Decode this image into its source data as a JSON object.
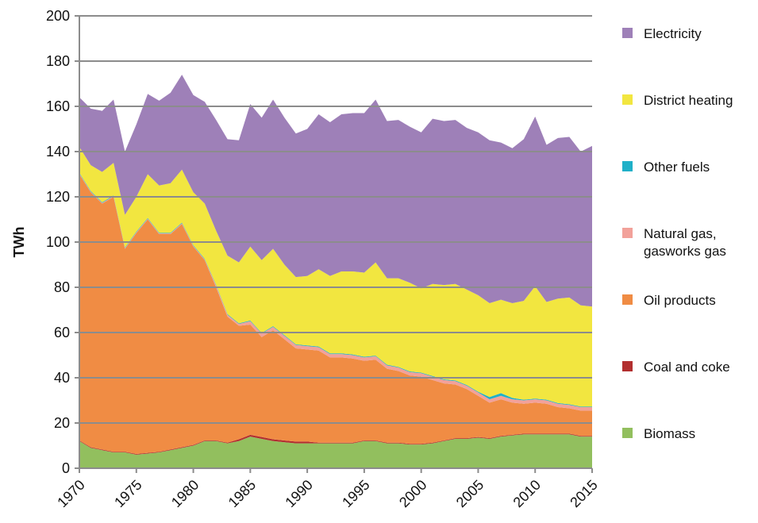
{
  "chart_data": {
    "type": "stacked-area",
    "y_label": "TWh",
    "x": [
      1970,
      1971,
      1972,
      1973,
      1974,
      1975,
      1976,
      1977,
      1978,
      1979,
      1980,
      1981,
      1982,
      1983,
      1984,
      1985,
      1986,
      1987,
      1988,
      1989,
      1990,
      1991,
      1992,
      1993,
      1994,
      1995,
      1996,
      1997,
      1998,
      1999,
      2000,
      2001,
      2002,
      2003,
      2004,
      2005,
      2006,
      2007,
      2008,
      2009,
      2010,
      2011,
      2012,
      2013,
      2014,
      2015
    ],
    "xlim": [
      1970,
      2015
    ],
    "xticks": [
      1970,
      1975,
      1980,
      1985,
      1990,
      1995,
      2000,
      2005,
      2010,
      2015
    ],
    "ylim": [
      0,
      200
    ],
    "yticks": [
      0,
      20,
      40,
      60,
      80,
      100,
      120,
      140,
      160,
      180,
      200
    ],
    "grid": true,
    "series": [
      {
        "name": "Biomass",
        "color": "#92bf5e",
        "values": [
          12,
          9,
          8,
          7,
          7,
          6,
          6.5,
          7,
          8,
          9,
          10,
          12,
          12,
          11,
          12,
          14,
          13,
          12,
          11.5,
          11,
          11,
          11,
          11,
          11,
          11,
          12,
          12,
          11,
          11,
          10.5,
          10.5,
          11,
          12,
          13,
          13,
          13.5,
          13,
          14,
          14.5,
          15,
          15,
          15,
          15,
          15,
          14,
          14
        ]
      },
      {
        "name": "Coal and coke",
        "color": "#b22f2f",
        "values": [
          0.3,
          0.3,
          0.3,
          0.3,
          0.3,
          0.3,
          0.3,
          0.3,
          0.3,
          0.3,
          0.3,
          0.3,
          0.3,
          0.3,
          0.8,
          0.8,
          0.8,
          0.8,
          0.8,
          0.8,
          0.8,
          0.3,
          0.3,
          0.3,
          0.3,
          0.3,
          0.3,
          0.3,
          0.3,
          0.3,
          0.3,
          0.3,
          0.3,
          0.3,
          0.3,
          0.3,
          0.3,
          0.3,
          0.3,
          0.3,
          0.3,
          0.3,
          0.3,
          0.3,
          0.3,
          0.3
        ]
      },
      {
        "name": "Oil products",
        "color": "#f08c44",
        "values": [
          117.7,
          112.7,
          108.7,
          112.7,
          89.7,
          97.7,
          103.2,
          96.2,
          95.2,
          98.7,
          87.7,
          79.7,
          67.7,
          55.7,
          50.2,
          48.7,
          44.2,
          48.2,
          44.7,
          41.2,
          40.7,
          40.7,
          37.7,
          37.7,
          37.2,
          35.2,
          35.7,
          32.7,
          31.7,
          30.2,
          29.7,
          27.7,
          25.2,
          23.7,
          21.7,
          18.2,
          15.7,
          16.2,
          14.2,
          13.2,
          13.7,
          13.2,
          11.7,
          11.2,
          11.2,
          11.2
        ]
      },
      {
        "name": "Natural gas, gasworks gas",
        "color": "#f2a19a",
        "values": [
          0.3,
          0.3,
          0.3,
          0.3,
          0.3,
          0.3,
          0.3,
          0.3,
          0.3,
          0.3,
          0.3,
          0.3,
          0.8,
          0.8,
          0.8,
          1.5,
          1.5,
          1.5,
          1.5,
          1.5,
          1.5,
          1.5,
          1.5,
          1.5,
          1.5,
          1.5,
          1.5,
          1.5,
          1.5,
          1.5,
          1.5,
          1.5,
          1.5,
          1.5,
          1.5,
          1.5,
          1.5,
          1.5,
          1.5,
          1.5,
          1.5,
          1.5,
          1.5,
          1.5,
          1.5,
          1.5
        ]
      },
      {
        "name": "Other fuels",
        "color": "#1fb0c8",
        "values": [
          0.3,
          0.3,
          0.3,
          0.3,
          0.3,
          0.3,
          0.3,
          0.3,
          0.3,
          0.3,
          0.3,
          0.3,
          0.3,
          0.3,
          0.3,
          0.3,
          0.3,
          0.3,
          0.3,
          0.3,
          0.3,
          0.3,
          0.3,
          0.3,
          0.3,
          0.3,
          0.3,
          0.3,
          0.3,
          0.3,
          0.3,
          0.3,
          0.3,
          0.3,
          0.3,
          0.3,
          1,
          1.2,
          0.6,
          0.3,
          0.3,
          0.3,
          0.3,
          0.3,
          0.3,
          0.3
        ]
      },
      {
        "name": "District heating",
        "color": "#f2e640",
        "values": [
          11.4,
          11.4,
          13.4,
          14.4,
          14.4,
          15.4,
          19.4,
          20.9,
          21.9,
          23.4,
          23.4,
          24.4,
          23.9,
          25.9,
          26.9,
          32.7,
          32.2,
          34.2,
          31.2,
          29.7,
          30.7,
          34.2,
          34.2,
          36.2,
          36.7,
          37.2,
          41.2,
          38.2,
          39.2,
          39.2,
          37.2,
          40.7,
          41.7,
          42.7,
          42.2,
          42.7,
          41.5,
          41.3,
          41.9,
          43.7,
          49.7,
          43.2,
          46.2,
          47.2,
          44.7,
          44.2
        ]
      },
      {
        "name": "Electricity",
        "color": "#9e80b8",
        "values": [
          22,
          25,
          27,
          28,
          28,
          32,
          35.5,
          37.5,
          40,
          42,
          43,
          45,
          49,
          51.5,
          54,
          63,
          63,
          66,
          65,
          63.5,
          65,
          68.5,
          68,
          69.5,
          70,
          70.5,
          72,
          69.5,
          70,
          69,
          69,
          73,
          72.5,
          72.5,
          71.5,
          72,
          72,
          69.5,
          68.5,
          71.5,
          75,
          69.5,
          71,
          71,
          68,
          71
        ]
      }
    ]
  }
}
